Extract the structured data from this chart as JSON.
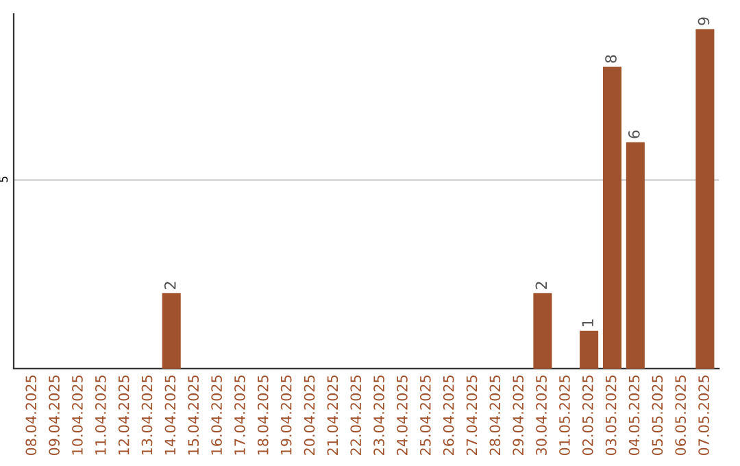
{
  "chart_data": {
    "type": "bar",
    "categories": [
      "08.04.2025",
      "09.04.2025",
      "10.04.2025",
      "11.04.2025",
      "12.04.2025",
      "13.04.2025",
      "14.04.2025",
      "15.04.2025",
      "16.04.2025",
      "17.04.2025",
      "18.04.2025",
      "19.04.2025",
      "20.04.2025",
      "21.04.2025",
      "22.04.2025",
      "23.04.2025",
      "24.04.2025",
      "25.04.2025",
      "26.04.2025",
      "27.04.2025",
      "28.04.2025",
      "29.04.2025",
      "30.04.2025",
      "01.05.2025",
      "02.05.2025",
      "03.05.2025",
      "04.05.2025",
      "05.05.2025",
      "06.05.2025",
      "07.05.2025"
    ],
    "values": [
      0,
      0,
      0,
      0,
      0,
      0,
      2,
      0,
      0,
      0,
      0,
      0,
      0,
      0,
      0,
      0,
      0,
      0,
      0,
      0,
      0,
      0,
      2,
      0,
      1,
      8,
      6,
      0,
      0,
      9
    ],
    "value_labels": [
      null,
      null,
      null,
      null,
      null,
      null,
      "2",
      null,
      null,
      null,
      null,
      null,
      null,
      null,
      null,
      null,
      null,
      null,
      null,
      null,
      null,
      null,
      "2",
      null,
      "1",
      "8",
      "6",
      null,
      null,
      "9"
    ],
    "color": "#a0522d",
    "ylim": [
      0,
      9.4
    ],
    "yticks": [
      5
    ],
    "grid": "y",
    "legend": false
  }
}
